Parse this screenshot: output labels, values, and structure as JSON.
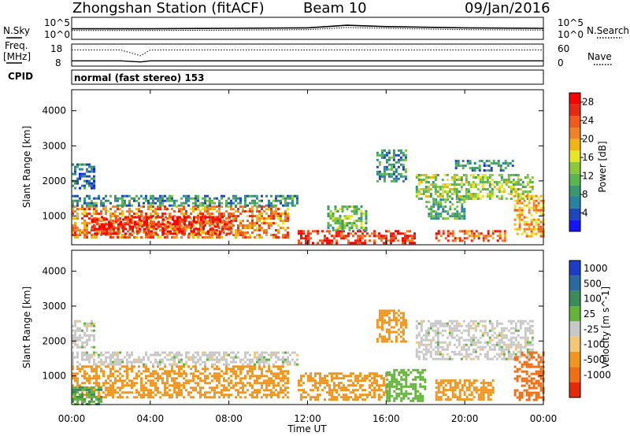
{
  "header": {
    "station": "Zhongshan Station (fitACF)",
    "beam": "Beam 10",
    "date": "09/Jan/2016"
  },
  "top_panels": {
    "nsky_label": "N.Sky",
    "nsearch_label": "N.Search",
    "freq_label_line1": "Freq.",
    "freq_label_line2": "[MHz]",
    "nave_label": "Nave",
    "cpid_label": "CPID",
    "cpid_text": "normal (fast stereo) 153",
    "noise_ticks_left": [
      "10^5",
      "10^0"
    ],
    "noise_ticks_right": [
      "10^5",
      "10^0"
    ],
    "freq_ticks_left": [
      "18",
      "8"
    ],
    "nave_ticks_right": [
      "60",
      "0"
    ]
  },
  "x_axis": {
    "label": "Time UT",
    "ticks": [
      "00:00",
      "04:00",
      "08:00",
      "12:00",
      "16:00",
      "20:00",
      "00:00"
    ]
  },
  "y_axis": {
    "label": "Slant Range [km]",
    "ticks": [
      "1000",
      "2000",
      "3000",
      "4000"
    ]
  },
  "power_colorbar": {
    "label": "Power [dB]",
    "ticks": [
      "4",
      "8",
      "12",
      "16",
      "20",
      "24",
      "28"
    ],
    "colors": [
      "#1414ff",
      "#1e46be",
      "#2882a0",
      "#3c966e",
      "#5ab450",
      "#8cc83c",
      "#e6e628",
      "#f0b414",
      "#f08228",
      "#f05a1e",
      "#e62814",
      "#ff0000"
    ]
  },
  "velocity_colorbar": {
    "label": "Velocity [m s^-1]",
    "ticks": [
      "1000",
      "500",
      "100",
      "25",
      "-25",
      "-100",
      "-500",
      "-1000"
    ],
    "colors": [
      "#1e3cc8",
      "#2a6aa0",
      "#3c8c5a",
      "#64b43c",
      "#c8c8c8",
      "#f0c878",
      "#f0961e",
      "#f06e14",
      "#e6280a"
    ]
  },
  "chart_data": [
    {
      "type": "line",
      "title": "N.Sky / N.Search",
      "x": [
        "00:00",
        "04:00",
        "08:00",
        "12:00",
        "14:00",
        "16:00",
        "20:00",
        "00:00"
      ],
      "series": [
        {
          "name": "N.Sky",
          "values": [
            2.4,
            2.4,
            2.5,
            2.6,
            3.2,
            2.9,
            2.6,
            2.5
          ]
        },
        {
          "name": "N.Search",
          "values": [
            2.0,
            2.0,
            2.1,
            2.2,
            2.7,
            2.5,
            2.2,
            2.1
          ]
        }
      ],
      "ylim": [
        0,
        5
      ]
    },
    {
      "type": "line",
      "title": "Freq. / Nave",
      "x": [
        "00:00",
        "02:30",
        "03:30",
        "04:00",
        "08:00",
        "12:00",
        "16:00",
        "20:00",
        "00:00"
      ],
      "series": [
        {
          "name": "Freq. [MHz]",
          "values": [
            10.4,
            10.4,
            9.9,
            10.4,
            10.4,
            10.4,
            10.4,
            10.4,
            10.4
          ]
        },
        {
          "name": "Nave",
          "values": [
            44,
            44,
            28,
            44,
            44,
            44,
            44,
            44,
            44
          ]
        }
      ],
      "ylim": [
        8,
        18
      ]
    },
    {
      "type": "heatmap",
      "title": "Power [dB]",
      "xlabel": "Time UT",
      "ylabel": "Slant Range [km]",
      "xlim": [
        0,
        24
      ],
      "ylim": [
        180,
        4600
      ],
      "clim": [
        0,
        30
      ],
      "regions": [
        {
          "t": [
            0.0,
            11.0
          ],
          "r": [
            400,
            1300
          ],
          "value": 22
        },
        {
          "t": [
            1.0,
            8.0
          ],
          "r": [
            500,
            1000
          ],
          "value": 27
        },
        {
          "t": [
            0.0,
            11.5
          ],
          "r": [
            1300,
            1600
          ],
          "value": 8
        },
        {
          "t": [
            0.0,
            1.2
          ],
          "r": [
            1800,
            2500
          ],
          "value": 6
        },
        {
          "t": [
            11.5,
            17.5
          ],
          "r": [
            200,
            600
          ],
          "value": 26
        },
        {
          "t": [
            13.0,
            15.0
          ],
          "r": [
            600,
            1300
          ],
          "value": 12
        },
        {
          "t": [
            15.5,
            17.0
          ],
          "r": [
            2000,
            2900
          ],
          "value": 8
        },
        {
          "t": [
            17.5,
            23.5
          ],
          "r": [
            1500,
            2200
          ],
          "value": 14
        },
        {
          "t": [
            18.0,
            20.0
          ],
          "r": [
            900,
            1500
          ],
          "value": 10
        },
        {
          "t": [
            18.5,
            22.0
          ],
          "r": [
            300,
            600
          ],
          "value": 24
        },
        {
          "t": [
            22.5,
            24.0
          ],
          "r": [
            400,
            1600
          ],
          "value": 20
        },
        {
          "t": [
            19.5,
            22.5
          ],
          "r": [
            2300,
            2600
          ],
          "value": 7
        }
      ]
    },
    {
      "type": "heatmap",
      "title": "Velocity [m s^-1]",
      "xlabel": "Time UT",
      "ylabel": "Slant Range [km]",
      "xlim": [
        0,
        24
      ],
      "ylim": [
        180,
        4600
      ],
      "regions": [
        {
          "t": [
            0.0,
            11.0
          ],
          "r": [
            400,
            1300
          ],
          "value": -150
        },
        {
          "t": [
            0.0,
            1.5
          ],
          "r": [
            200,
            700
          ],
          "value": 100
        },
        {
          "t": [
            0.0,
            11.5
          ],
          "r": [
            1300,
            1700
          ],
          "value": 0
        },
        {
          "t": [
            0.0,
            1.2
          ],
          "r": [
            1800,
            2600
          ],
          "value": 0
        },
        {
          "t": [
            11.5,
            16.0
          ],
          "r": [
            300,
            1100
          ],
          "value": -300
        },
        {
          "t": [
            15.5,
            17.0
          ],
          "r": [
            2000,
            2900
          ],
          "value": -200
        },
        {
          "t": [
            16.0,
            18.0
          ],
          "r": [
            300,
            1200
          ],
          "value": 60
        },
        {
          "t": [
            17.5,
            23.5
          ],
          "r": [
            1500,
            2600
          ],
          "value": 0
        },
        {
          "t": [
            18.5,
            21.5
          ],
          "r": [
            300,
            900
          ],
          "value": -200
        },
        {
          "t": [
            22.5,
            24.0
          ],
          "r": [
            300,
            1700
          ],
          "value": -600
        }
      ]
    }
  ]
}
